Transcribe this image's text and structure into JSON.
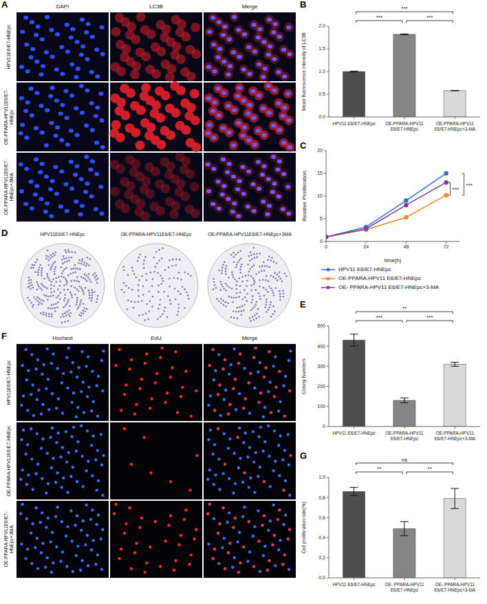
{
  "image_panels": [
    {
      "panel": "A",
      "columns": [
        "DAPI",
        "LC3B",
        "Merge"
      ],
      "rows": [
        "HPV11E6/E7-HNEpc",
        "OE-PPARA-HPV11E6/E7-HNEpc",
        "OE-PPARA-HPV11E6/E7-HNEpc+3MA"
      ]
    },
    {
      "panel": "D",
      "labels": [
        "HPV11E6/E7-HNEpc",
        "OE-PPARA-HPV11E6/E7-HNEpc",
        "OE-PPARA-HPV11E6/E7-HNEpc+3MA"
      ]
    },
    {
      "panel": "F",
      "columns": [
        "Hochest",
        "EdU",
        "Merge"
      ],
      "rows": [
        "HPV11E6/E7-HNEpc",
        "OE-PPARA-HPV11E6/E7-HNEpc",
        "OE-PPARA-HPV11E6/E7-HNEpc+3MA"
      ]
    }
  ],
  "chart_data": [
    {
      "panel": "B",
      "type": "bar",
      "y_label": "Mean fluorescence intensity of LC3B",
      "categories": [
        "HPV11 E6/E7-HNEpc",
        "OE-PPARA-HPV11 E6/E7-HNEpc",
        "OE-PPARA-HPV11 E6/E7-HNEpc+3-MA"
      ],
      "values": [
        1.0,
        1.82,
        0.58
      ],
      "errors": [
        0.01,
        0.01,
        0.005
      ],
      "colors": [
        "#4d4d4d",
        "#858585",
        "#d9d9d9"
      ],
      "ylim": [
        0,
        2
      ],
      "yticks": [
        {
          "value": 0,
          "label": "0.0"
        },
        {
          "value": 0.5,
          "label": "0.5"
        },
        {
          "value": 1,
          "label": "1.0"
        },
        {
          "value": 1.5,
          "label": "1.5"
        },
        {
          "value": 2,
          "label": "2.0"
        }
      ],
      "significance": [
        {
          "pair": [
            "HPV11 E6/E7-HNEpc",
            "OE-PPARA-HPV11 E6/E7-HNEpc"
          ],
          "label": "***"
        },
        {
          "pair": [
            "OE-PPARA-HPV11 E6/E7-HNEpc",
            "OE-PPARA-HPV11 E6/E7-HNEpc+3-MA"
          ],
          "label": "***"
        },
        {
          "pair": [
            "HPV11 E6/E7-HNEpc",
            "OE-PPARA-HPV11 E6/E7-HNEpc+3-MA"
          ],
          "label": "***"
        }
      ]
    },
    {
      "panel": "C",
      "type": "line",
      "x_label": "time(h)",
      "y_label": "Relative Proliferation",
      "x": [
        0,
        24,
        48,
        72
      ],
      "xlim": [
        0,
        80
      ],
      "xticks": [
        0,
        24,
        48,
        72
      ],
      "ylim": [
        0,
        20
      ],
      "yticks": [
        0,
        5,
        10,
        15,
        20
      ],
      "legend": "bottom",
      "series": [
        {
          "name": "HPV11 E6/E7-HNEpc",
          "color": "#2f6fd6",
          "marker": "circle",
          "values": [
            1,
            3.2,
            9,
            15
          ]
        },
        {
          "name": "OE-PPARA-HPV11 E6/E7-HNEpc",
          "color": "#f08a24",
          "marker": "circle",
          "values": [
            1,
            2.6,
            5.3,
            10.2
          ]
        },
        {
          "name": "OE- PPARA-HPV11 E6/E7-HNEpc+3-MA",
          "color": "#7a3c9e",
          "marker": "circle",
          "values": [
            1,
            2.8,
            8,
            13
          ]
        }
      ],
      "significance": [
        {
          "pair": [
            "HPV11 E6/E7-HNEpc",
            "OE-PPARA-HPV11 E6/E7-HNEpc"
          ],
          "label": "***"
        },
        {
          "pair": [
            "OE- PPARA-HPV11 E6/E7-HNEpc+3-MA",
            "OE-PPARA-HPV11 E6/E7-HNEpc"
          ],
          "label": "***"
        }
      ]
    },
    {
      "panel": "E",
      "type": "bar",
      "y_label": "Colony Numbers",
      "categories": [
        "HPV11 E6/E7-HNEpc",
        "OE-PPARA-HPV11 E6/E7-HNEpc",
        "OE-PPARA-HPV11 E6/E7-HNEpc+3-MA"
      ],
      "values": [
        430,
        130,
        310
      ],
      "errors": [
        30,
        12,
        10
      ],
      "colors": [
        "#4d4d4d",
        "#858585",
        "#d9d9d9"
      ],
      "ylim": [
        0,
        500
      ],
      "yticks": [
        0,
        100,
        200,
        300,
        400,
        500
      ],
      "significance": [
        {
          "pair": [
            "HPV11 E6/E7-HNEpc",
            "OE-PPARA-HPV11 E6/E7-HNEpc"
          ],
          "label": "***"
        },
        {
          "pair": [
            "OE-PPARA-HPV11 E6/E7-HNEpc",
            "OE-PPARA-HPV11 E6/E7-HNEpc+3-MA"
          ],
          "label": "***"
        },
        {
          "pair": [
            "HPV11 E6/E7-HNEpc",
            "OE-PPARA-HPV11 E6/E7-HNEpc+3-MA"
          ],
          "label": "**"
        }
      ]
    },
    {
      "panel": "G",
      "type": "bar",
      "y_label": "Cell proliferation rate(%)",
      "categories": [
        "HPV11 E6/E7-HNEpc",
        "OE- PPARA-HPV11 E6/E7-HNEpc",
        "OE- PPARA-HPV11 E6/E7-HNEpc+3-MA"
      ],
      "values": [
        0.86,
        0.49,
        0.79
      ],
      "errors": [
        0.04,
        0.07,
        0.1
      ],
      "colors": [
        "#4d4d4d",
        "#858585",
        "#d9d9d9"
      ],
      "ylim": [
        0,
        1
      ],
      "yticks": [
        {
          "value": 0,
          "label": "0.0"
        },
        {
          "value": 0.2,
          "label": "0.2"
        },
        {
          "value": 0.4,
          "label": "0.4"
        },
        {
          "value": 0.6,
          "label": "0.6"
        },
        {
          "value": 0.8,
          "label": "0.8"
        },
        {
          "value": 1,
          "label": "1.0"
        }
      ],
      "significance": [
        {
          "pair": [
            "HPV11 E6/E7-HNEpc",
            "OE- PPARA-HPV11 E6/E7-HNEpc"
          ],
          "label": "**"
        },
        {
          "pair": [
            "OE- PPARA-HPV11 E6/E7-HNEpc",
            "OE- PPARA-HPV11 E6/E7-HNEpc+3-MA"
          ],
          "label": "**"
        },
        {
          "pair": [
            "HPV11 E6/E7-HNEpc",
            "OE- PPARA-HPV11 E6/E7-HNEpc+3-MA"
          ],
          "label": "ns"
        }
      ]
    }
  ]
}
